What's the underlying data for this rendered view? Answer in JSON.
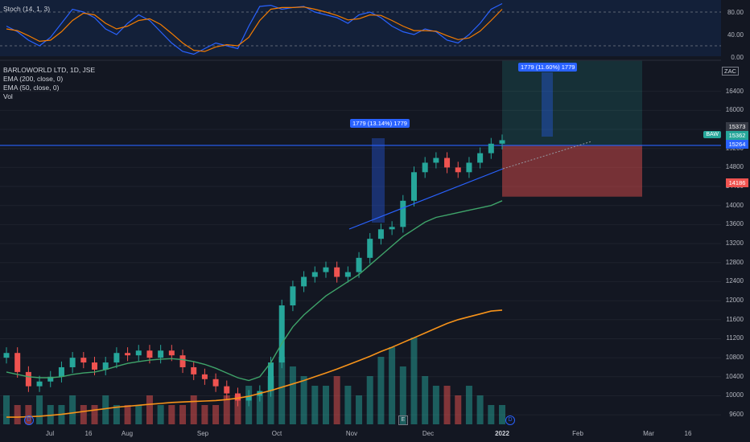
{
  "stoch_panel": {
    "title": "Stoch (14, 1, 3)",
    "yticks": [
      "80.00",
      "40.00",
      "0.00"
    ]
  },
  "main_panel": {
    "legend": [
      "BARLOWORLD LTD, 1D, JSE",
      "EMA (200, close, 0)",
      "EMA (50, close, 0)",
      "Vol"
    ],
    "currency": "ZAC",
    "yticks": [
      "16400",
      "16000",
      "15600",
      "15200",
      "14800",
      "14400",
      "14000",
      "13600",
      "13200",
      "12800",
      "12400",
      "12000",
      "11600",
      "11200",
      "10800",
      "10400",
      "10000",
      "9600"
    ],
    "price_labels": {
      "last": "15373",
      "symbol": "BAW",
      "p2": "15362",
      "p3": "15264",
      "stop": "14186"
    },
    "annotations": {
      "measure1": "1779 (13.14%) 1779",
      "measure2": "1779 (11.60%) 1779"
    },
    "markers": [
      "D",
      "E",
      "D"
    ]
  },
  "x_axis": [
    "Jul",
    "16",
    "Aug",
    "Sep",
    "Oct",
    "Nov",
    "Dec",
    "2022",
    "Feb",
    "Mar",
    "16"
  ],
  "colors": {
    "up": "#26a69a",
    "down": "#ef5350",
    "ema50": "#3fa46a",
    "ema200": "#f7931a",
    "stoch_k": "#2962ff",
    "stoch_d": "#f57c00",
    "trendline": "#2962ff"
  },
  "chart_data": {
    "type": "candlestick",
    "title": "BARLOWORLD LTD, 1D, JSE",
    "ylabel": "ZAC",
    "ylim": [
      9400,
      16800
    ],
    "x": [
      "Jun-28",
      "Jul-01",
      "Jul-06",
      "Jul-09",
      "Jul-14",
      "Jul-19",
      "Jul-22",
      "Jul-27",
      "Jul-30",
      "Aug-04",
      "Aug-09",
      "Aug-12",
      "Aug-17",
      "Aug-20",
      "Aug-25",
      "Aug-30",
      "Sep-02",
      "Sep-07",
      "Sep-10",
      "Sep-15",
      "Sep-20",
      "Sep-23",
      "Sep-28",
      "Oct-01",
      "Oct-06",
      "Oct-11",
      "Oct-14",
      "Oct-19",
      "Oct-22",
      "Oct-27",
      "Nov-01",
      "Nov-04",
      "Nov-09",
      "Nov-12",
      "Nov-17",
      "Nov-22",
      "Nov-25",
      "Nov-30",
      "Dec-03",
      "Dec-08",
      "Dec-13",
      "Dec-16",
      "Dec-21",
      "Dec-24",
      "Dec-29",
      "Jan-03"
    ],
    "close": [
      10900,
      10500,
      10200,
      10300,
      10400,
      10600,
      10800,
      10700,
      10550,
      10700,
      10900,
      10850,
      10950,
      10800,
      10950,
      10850,
      10600,
      10450,
      10350,
      10200,
      10050,
      9900,
      10000,
      10100,
      10700,
      11900,
      12300,
      12500,
      12600,
      12700,
      12500,
      12600,
      12900,
      13300,
      13500,
      13550,
      14100,
      14700,
      14900,
      15000,
      14800,
      14700,
      14900,
      15100,
      15300,
      15373
    ],
    "ema50": [
      10500,
      10450,
      10400,
      10380,
      10380,
      10400,
      10450,
      10480,
      10500,
      10550,
      10620,
      10680,
      10720,
      10750,
      10770,
      10780,
      10760,
      10720,
      10660,
      10580,
      10480,
      10380,
      10320,
      10400,
      10700,
      11100,
      11450,
      11700,
      11900,
      12100,
      12250,
      12400,
      12550,
      12750,
      12950,
      13150,
      13350,
      13500,
      13650,
      13750,
      13800,
      13850,
      13900,
      13950,
      14000,
      14100
    ],
    "ema200": [
      9550,
      9550,
      9560,
      9570,
      9590,
      9610,
      9640,
      9670,
      9700,
      9730,
      9760,
      9780,
      9800,
      9820,
      9840,
      9860,
      9870,
      9880,
      9890,
      9900,
      9920,
      9950,
      9990,
      10050,
      10110,
      10180,
      10250,
      10320,
      10400,
      10480,
      10560,
      10650,
      10740,
      10830,
      10930,
      11020,
      11120,
      11220,
      11320,
      11420,
      11520,
      11600,
      11660,
      11720,
      11780,
      11800
    ],
    "volume": [
      3,
      2,
      2,
      3,
      2,
      2,
      3,
      2,
      2,
      3,
      2,
      2,
      2,
      3,
      2,
      2,
      2,
      3,
      2,
      2,
      3,
      3,
      4,
      3,
      5,
      7,
      6,
      5,
      4,
      4,
      5,
      4,
      3,
      5,
      7,
      8,
      6,
      9,
      5,
      4,
      4,
      3,
      4,
      3,
      2,
      2
    ],
    "position": {
      "entry": 15264,
      "target": 17043,
      "stop": 14186
    },
    "stochastic": {
      "k": [
        55,
        45,
        30,
        20,
        35,
        60,
        85,
        80,
        70,
        50,
        40,
        60,
        75,
        65,
        45,
        25,
        10,
        5,
        15,
        25,
        20,
        15,
        55,
        90,
        92,
        85,
        88,
        90,
        80,
        75,
        70,
        60,
        75,
        80,
        70,
        55,
        45,
        40,
        50,
        45,
        30,
        25,
        40,
        60,
        85,
        95
      ],
      "d": [
        50,
        47,
        38,
        28,
        30,
        45,
        65,
        78,
        75,
        60,
        50,
        55,
        65,
        68,
        58,
        42,
        25,
        12,
        10,
        18,
        22,
        20,
        35,
        65,
        85,
        88,
        88,
        89,
        85,
        80,
        74,
        66,
        68,
        75,
        74,
        65,
        55,
        47,
        47,
        46,
        38,
        31,
        34,
        46,
        65,
        85
      ]
    }
  }
}
